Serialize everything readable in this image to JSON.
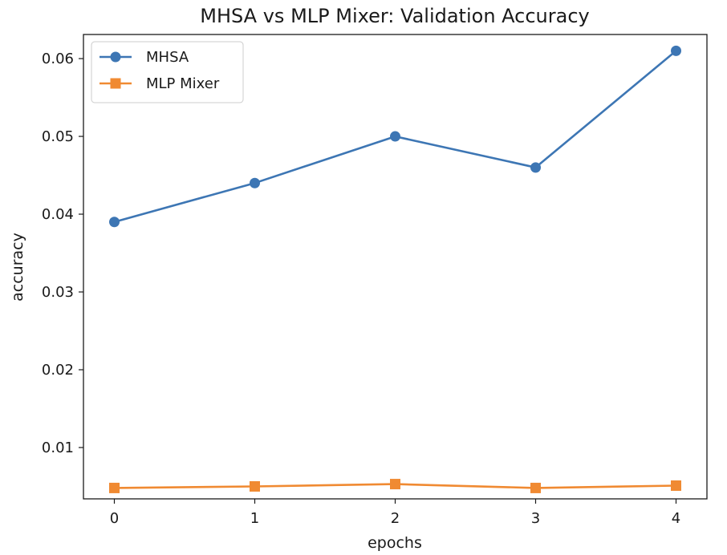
{
  "chart_data": {
    "type": "line",
    "title": "MHSA vs MLP Mixer: Validation Accuracy",
    "xlabel": "epochs",
    "ylabel": "accuracy",
    "x": [
      0,
      1,
      2,
      3,
      4
    ],
    "xticks": [
      "0",
      "1",
      "2",
      "3",
      "4"
    ],
    "yticks": [
      "0.01",
      "0.02",
      "0.03",
      "0.04",
      "0.05",
      "0.06"
    ],
    "xlim": [
      -0.22,
      4.22
    ],
    "ylim": [
      0.0034,
      0.0631
    ],
    "grid": false,
    "legend_position": "top-left",
    "series": [
      {
        "name": "MHSA",
        "color": "#3d76b4",
        "marker": "circle",
        "values": [
          0.039,
          0.044,
          0.05,
          0.046,
          0.061
        ]
      },
      {
        "name": "MLP Mixer",
        "color": "#f08a32",
        "marker": "square",
        "values": [
          0.0048,
          0.005,
          0.0053,
          0.0048,
          0.0051
        ]
      }
    ]
  }
}
